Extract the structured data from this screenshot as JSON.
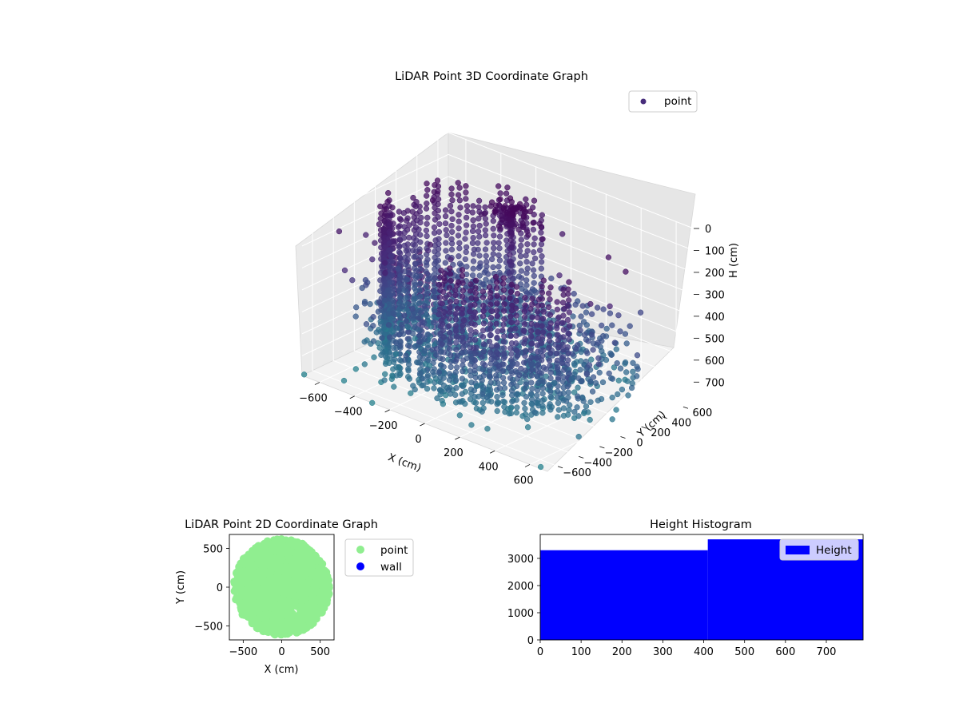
{
  "chart_data": [
    {
      "type": "scatter",
      "projection": "3d",
      "title": "LiDAR Point 3D Coordinate Graph",
      "xlabel": "X (cm)",
      "ylabel": "Y (cm)",
      "zlabel": "H (cm)",
      "xlim": [
        -700,
        700
      ],
      "ylim": [
        -700,
        700
      ],
      "zlim": [
        790,
        0
      ],
      "z_axis_inverted": true,
      "x_ticks": [
        -600,
        -400,
        -200,
        0,
        200,
        400,
        600
      ],
      "x_tick_labels": [
        "−600",
        "−400",
        "−200",
        "0",
        "200",
        "400",
        "600"
      ],
      "y_ticks": [
        -600,
        -400,
        -200,
        0,
        200,
        400,
        600
      ],
      "y_tick_labels": [
        "−600",
        "−400",
        "−200",
        "0",
        "200",
        "400",
        "600"
      ],
      "z_ticks": [
        0,
        100,
        200,
        300,
        400,
        500,
        600,
        700
      ],
      "z_tick_labels": [
        "0",
        "100",
        "200",
        "300",
        "400",
        "500",
        "600",
        "700"
      ],
      "legend": {
        "entries": [
          "point"
        ],
        "location": "top-right"
      },
      "colormap": "viridis (colored by height)",
      "series": [
        {
          "name": "point",
          "description": "ring of points around the sensor with a central post structure"
        }
      ],
      "grid": true
    },
    {
      "type": "scatter",
      "title": "LiDAR Point 2D Coordinate Graph",
      "xlabel": "X (cm)",
      "ylabel": "Y (cm)",
      "xlim": [
        -680,
        680
      ],
      "ylim": [
        -680,
        680
      ],
      "x_ticks": [
        -500,
        0,
        500
      ],
      "x_tick_labels": [
        "−500",
        "0",
        "500"
      ],
      "y_ticks": [
        -500,
        0,
        500
      ],
      "y_tick_labels": [
        "−500",
        "0",
        "500"
      ],
      "legend": {
        "entries": [
          "point",
          "wall"
        ],
        "location": "outside-right"
      },
      "series": [
        {
          "name": "point",
          "color": "#90ee90"
        },
        {
          "name": "wall",
          "color": "#0000ff"
        }
      ]
    },
    {
      "type": "bar",
      "subtype": "histogram",
      "title": "Height Histogram",
      "xlim": [
        0,
        790
      ],
      "ylim": [
        0,
        3880
      ],
      "x_ticks": [
        0,
        100,
        200,
        300,
        400,
        500,
        600,
        700
      ],
      "x_tick_labels": [
        "0",
        "100",
        "200",
        "300",
        "400",
        "500",
        "600",
        "700"
      ],
      "y_ticks": [
        0,
        1000,
        2000,
        3000
      ],
      "y_tick_labels": [
        "0",
        "1000",
        "2000",
        "3000"
      ],
      "bins": [
        {
          "x0": 0,
          "x1": 410,
          "count": 3300
        },
        {
          "x0": 410,
          "x1": 790,
          "count": 3700
        }
      ],
      "series": [
        {
          "name": "Height",
          "color": "#0000ff"
        }
      ],
      "legend": {
        "entries": [
          "Height"
        ],
        "location": "upper-right"
      }
    }
  ]
}
